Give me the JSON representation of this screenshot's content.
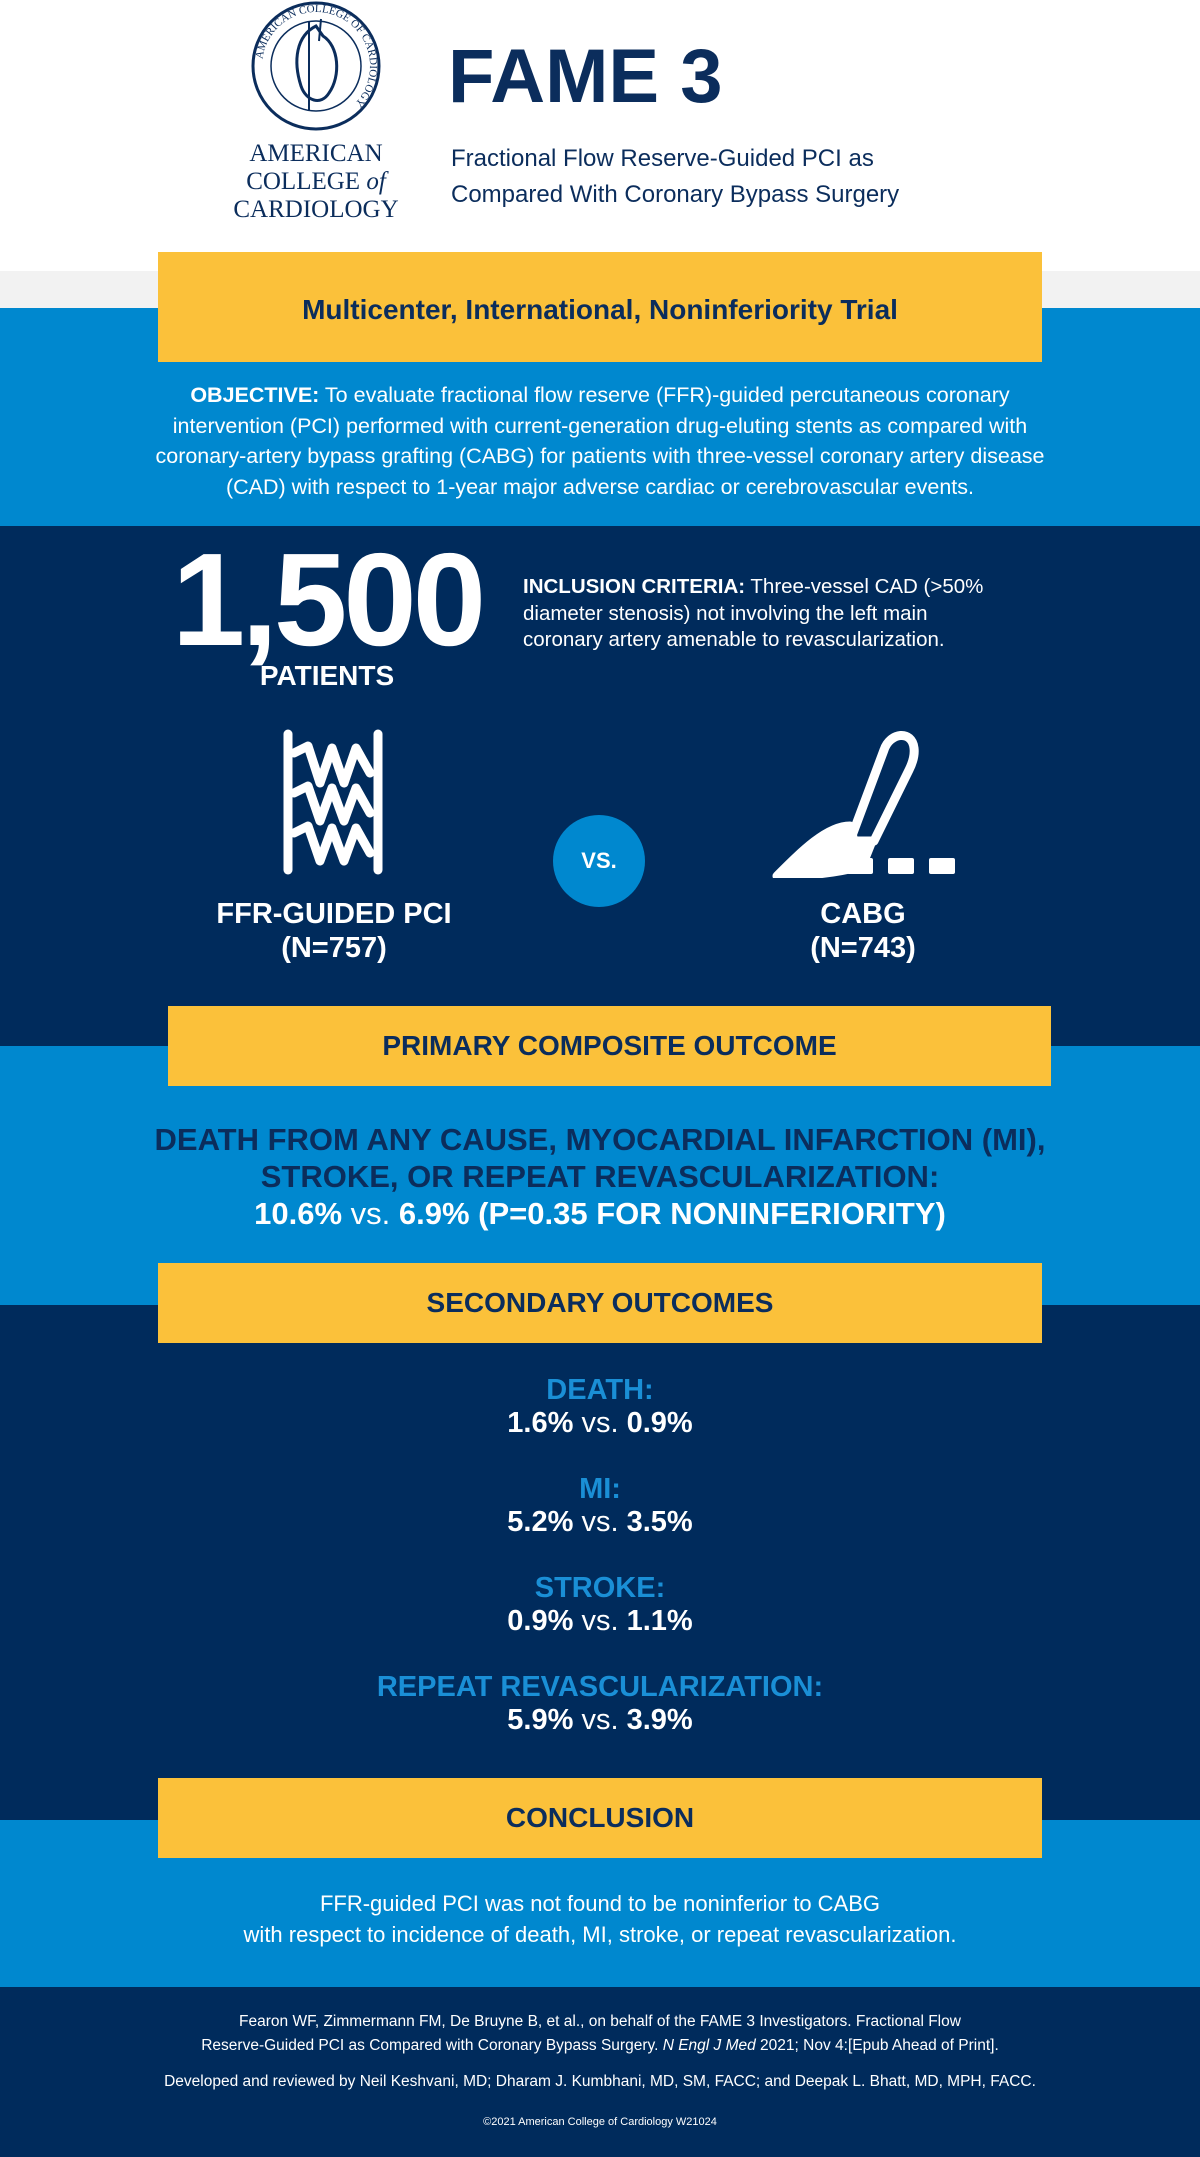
{
  "header": {
    "logo_text": [
      "AMERICAN",
      "COLLEGE",
      "of",
      "CARDIOLOGY"
    ],
    "logo_seal_text": "AMERICAN COLLEGE OF CARDIOLOGY",
    "title": "FAME 3",
    "subtitle_line1": "Fractional Flow Reserve-Guided PCI as",
    "subtitle_line2": "Compared With Coronary Bypass Surgery"
  },
  "trial_type": "Multicenter, International, Noninferiority Trial",
  "objective": {
    "label": "OBJECTIVE:",
    "line1": " To evaluate fractional flow reserve (FFR)-guided percutaneous coronary",
    "line2": "intervention (PCI) performed with current-generation drug-eluting stents as compared with",
    "line3": "coronary-artery bypass grafting (CABG) for patients with three-vessel coronary artery disease",
    "line4": "(CAD) with respect to 1-year major adverse cardiac or cerebrovascular events."
  },
  "patients": {
    "count": "1,500",
    "label": "PATIENTS"
  },
  "inclusion": {
    "label": "INCLUSION CRITERIA:",
    "line1": " Three-vessel CAD (>50%",
    "line2": "diameter stenosis) not involving the left main",
    "line3": "coronary artery amenable to revascularization."
  },
  "arms": {
    "left": {
      "name": "FFR-GUIDED PCI",
      "n": "(N=757)",
      "icon": "stent-icon"
    },
    "vs": "VS.",
    "right": {
      "name": "CABG",
      "n": "(N=743)",
      "icon": "scalpel-icon"
    }
  },
  "primary": {
    "heading": "PRIMARY COMPOSITE OUTCOME",
    "line1": "DEATH FROM ANY CAUSE, MYOCARDIAL INFARCTION (MI),",
    "line2": "STROKE, OR REPEAT REVASCULARIZATION:",
    "value_a": "10.6%",
    "vs": " vs. ",
    "value_b": "6.9% (P=0.35 FOR NONINFERIORITY)"
  },
  "secondary": {
    "heading": "SECONDARY OUTCOMES",
    "items": [
      {
        "label": "DEATH:",
        "a": "1.6%",
        "vs": " vs. ",
        "b": "0.9%"
      },
      {
        "label": "MI:",
        "a": "5.2%",
        "vs": " vs. ",
        "b": "3.5%"
      },
      {
        "label": "STROKE:",
        "a": "0.9%",
        "vs": " vs. ",
        "b": "1.1%"
      },
      {
        "label": "REPEAT REVASCULARIZATION:",
        "a": "5.9%",
        "vs": " vs. ",
        "b": "3.9%"
      }
    ]
  },
  "conclusion": {
    "heading": "CONCLUSION",
    "line1": "FFR-guided PCI was not found to be noninferior to CABG",
    "line2": "with respect to incidence of death, MI, stroke, or repeat revascularization."
  },
  "footer": {
    "citation_line1": "Fearon WF, Zimmermann FM, De Bruyne B, et al., on behalf of the FAME 3 Investigators. Fractional Flow",
    "citation_line2a": "Reserve-Guided PCI as Compared with Coronary Bypass Surgery. ",
    "citation_journal": "N Engl J Med",
    "citation_line2b": " 2021; Nov 4:[Epub Ahead of Print].",
    "developed": "Developed and reviewed by Neil Keshvani, MD; Dharam J. Kumbhani, MD, SM, FACC; and Deepak L. Bhatt, MD, MPH, FACC.",
    "copyright": "©2021 American College of Cardiology W21024"
  },
  "colors": {
    "navy": "#002b5c",
    "light_blue": "#0088cf",
    "yellow": "#fbc13a",
    "label_blue": "#1a8fd6"
  }
}
